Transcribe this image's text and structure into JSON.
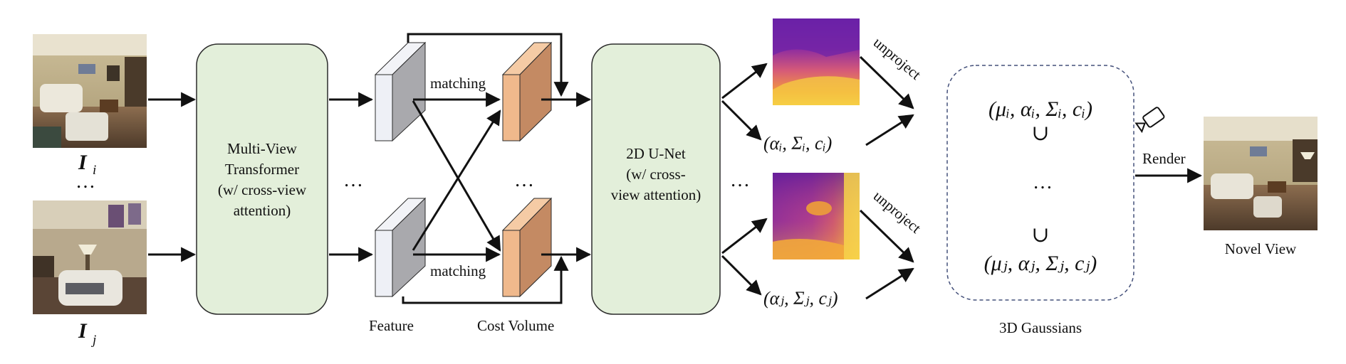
{
  "inputs": {
    "image_i_label": "I",
    "image_i_sub": "i",
    "image_j_label": "I",
    "image_j_sub": "j",
    "ellipsis": "…"
  },
  "mvt": {
    "line1": "Multi-View",
    "line2": "Transformer",
    "line3": "(w/ cross-view",
    "line4": "attention)"
  },
  "unet": {
    "line1": "2D U-Net",
    "line2": "(w/ cross-",
    "line3": "view",
    "line4": "attention)"
  },
  "labels": {
    "matching_top": "matching",
    "matching_bottom": "matching",
    "feature": "Feature",
    "cost_volume": "Cost Volume",
    "unproject_top": "unproject",
    "unproject_bottom": "unproject",
    "render": "Render",
    "novel_view": "Novel View",
    "gaussians": "3D Gaussians",
    "dots_mid1": "…",
    "dots_mid2": "…",
    "dots_mid3": "…",
    "dots_gauss": "…",
    "union_top": "∪",
    "union_bottom": "∪"
  },
  "math": {
    "params_i": "(αᵢ, Σᵢ, cᵢ)",
    "params_j": "(αⱼ, Σⱼ, cⱼ)",
    "gauss_i": "(μᵢ, αᵢ, Σᵢ, cᵢ)",
    "gauss_j": "(μⱼ, αⱼ, Σⱼ, cⱼ)"
  },
  "colors": {
    "box_fill": "#e3efda",
    "box_stroke": "#2b2b2b",
    "cost_front": "#f0b98c",
    "cost_side": "#c48a63",
    "feature_front": "#eef0f6",
    "feature_side": "#a9a9ad",
    "gauss_border": "#44507a"
  }
}
